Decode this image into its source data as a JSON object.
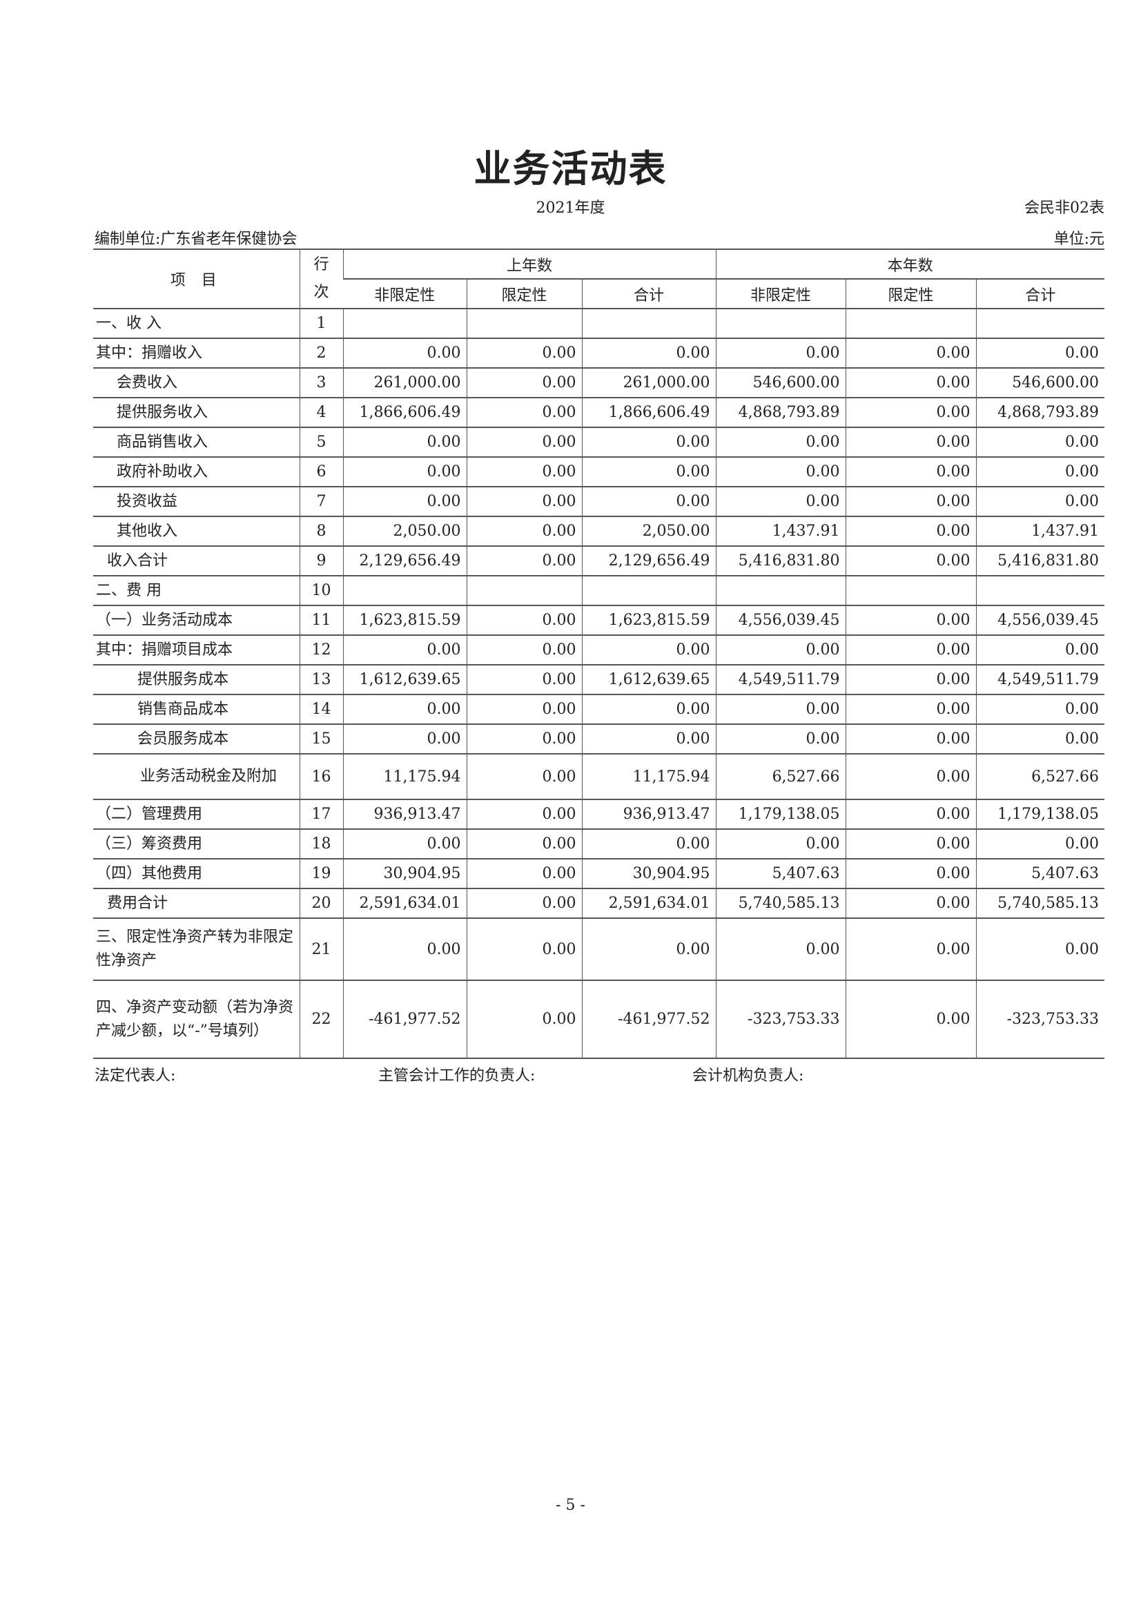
{
  "title": "业务活动表",
  "period": "2021年度",
  "form_no": "会民非02表",
  "unit_name": "编制单位:广东省老年保健协会",
  "unit": "单位:元",
  "headers": {
    "item": "项 目",
    "line": "行次",
    "prev_year": "上年数",
    "curr_year": "本年数",
    "unrestricted": "非限定性",
    "restricted": "限定性",
    "total": "合计"
  },
  "rows": [
    {
      "item": "一、收 入",
      "line": "1",
      "v": [
        "",
        "",
        "",
        "",
        "",
        ""
      ]
    },
    {
      "item": "其中：捐赠收入",
      "line": "2",
      "v": [
        "0.00",
        "0.00",
        "0.00",
        "0.00",
        "0.00",
        "0.00"
      ]
    },
    {
      "item": "会费收入",
      "line": "3",
      "v": [
        "261,000.00",
        "0.00",
        "261,000.00",
        "546,600.00",
        "0.00",
        "546,600.00"
      ]
    },
    {
      "item": "提供服务收入",
      "line": "4",
      "v": [
        "1,866,606.49",
        "0.00",
        "1,866,606.49",
        "4,868,793.89",
        "0.00",
        "4,868,793.89"
      ]
    },
    {
      "item": "商品销售收入",
      "line": "5",
      "v": [
        "0.00",
        "0.00",
        "0.00",
        "0.00",
        "0.00",
        "0.00"
      ]
    },
    {
      "item": "政府补助收入",
      "line": "6",
      "v": [
        "0.00",
        "0.00",
        "0.00",
        "0.00",
        "0.00",
        "0.00"
      ]
    },
    {
      "item": "投资收益",
      "line": "7",
      "v": [
        "0.00",
        "0.00",
        "0.00",
        "0.00",
        "0.00",
        "0.00"
      ]
    },
    {
      "item": "其他收入",
      "line": "8",
      "v": [
        "2,050.00",
        "0.00",
        "2,050.00",
        "1,437.91",
        "0.00",
        "1,437.91"
      ]
    },
    {
      "item": "收入合计",
      "line": "9",
      "v": [
        "2,129,656.49",
        "0.00",
        "2,129,656.49",
        "5,416,831.80",
        "0.00",
        "5,416,831.80"
      ]
    },
    {
      "item": "二、费 用",
      "line": "10",
      "v": [
        "",
        "",
        "",
        "",
        "",
        ""
      ]
    },
    {
      "item": "（一）业务活动成本",
      "line": "11",
      "v": [
        "1,623,815.59",
        "0.00",
        "1,623,815.59",
        "4,556,039.45",
        "0.00",
        "4,556,039.45"
      ]
    },
    {
      "item": "其中：捐赠项目成本",
      "line": "12",
      "v": [
        "0.00",
        "0.00",
        "0.00",
        "0.00",
        "0.00",
        "0.00"
      ]
    },
    {
      "item": "提供服务成本",
      "line": "13",
      "v": [
        "1,612,639.65",
        "0.00",
        "1,612,639.65",
        "4,549,511.79",
        "0.00",
        "4,549,511.79"
      ]
    },
    {
      "item": "销售商品成本",
      "line": "14",
      "v": [
        "0.00",
        "0.00",
        "0.00",
        "0.00",
        "0.00",
        "0.00"
      ]
    },
    {
      "item": "会员服务成本",
      "line": "15",
      "v": [
        "0.00",
        "0.00",
        "0.00",
        "0.00",
        "0.00",
        "0.00"
      ]
    },
    {
      "item": "业务活动税金及附加",
      "line": "16",
      "v": [
        "11,175.94",
        "0.00",
        "11,175.94",
        "6,527.66",
        "0.00",
        "6,527.66"
      ]
    },
    {
      "item": "（二）管理费用",
      "line": "17",
      "v": [
        "936,913.47",
        "0.00",
        "936,913.47",
        "1,179,138.05",
        "0.00",
        "1,179,138.05"
      ]
    },
    {
      "item": "（三）筹资费用",
      "line": "18",
      "v": [
        "0.00",
        "0.00",
        "0.00",
        "0.00",
        "0.00",
        "0.00"
      ]
    },
    {
      "item": "（四）其他费用",
      "line": "19",
      "v": [
        "30,904.95",
        "0.00",
        "30,904.95",
        "5,407.63",
        "0.00",
        "5,407.63"
      ]
    },
    {
      "item": "费用合计",
      "line": "20",
      "v": [
        "2,591,634.01",
        "0.00",
        "2,591,634.01",
        "5,740,585.13",
        "0.00",
        "5,740,585.13"
      ]
    },
    {
      "item": "三、限定性净资产转为非限定性净资产",
      "line": "21",
      "v": [
        "0.00",
        "0.00",
        "0.00",
        "0.00",
        "0.00",
        "0.00"
      ]
    },
    {
      "item": "四、净资产变动额（若为净资产减少额，以“-”号填列）",
      "line": "22",
      "v": [
        "-461,977.52",
        "0.00",
        "-461,977.52",
        "-323,753.33",
        "0.00",
        "-323,753.33"
      ]
    }
  ],
  "footer": {
    "legal_rep": "法定代表人:",
    "accounting_head": "主管会计工作的负责人:",
    "dept_head": "会计机构负责人:"
  },
  "page_number": "- 5 -"
}
